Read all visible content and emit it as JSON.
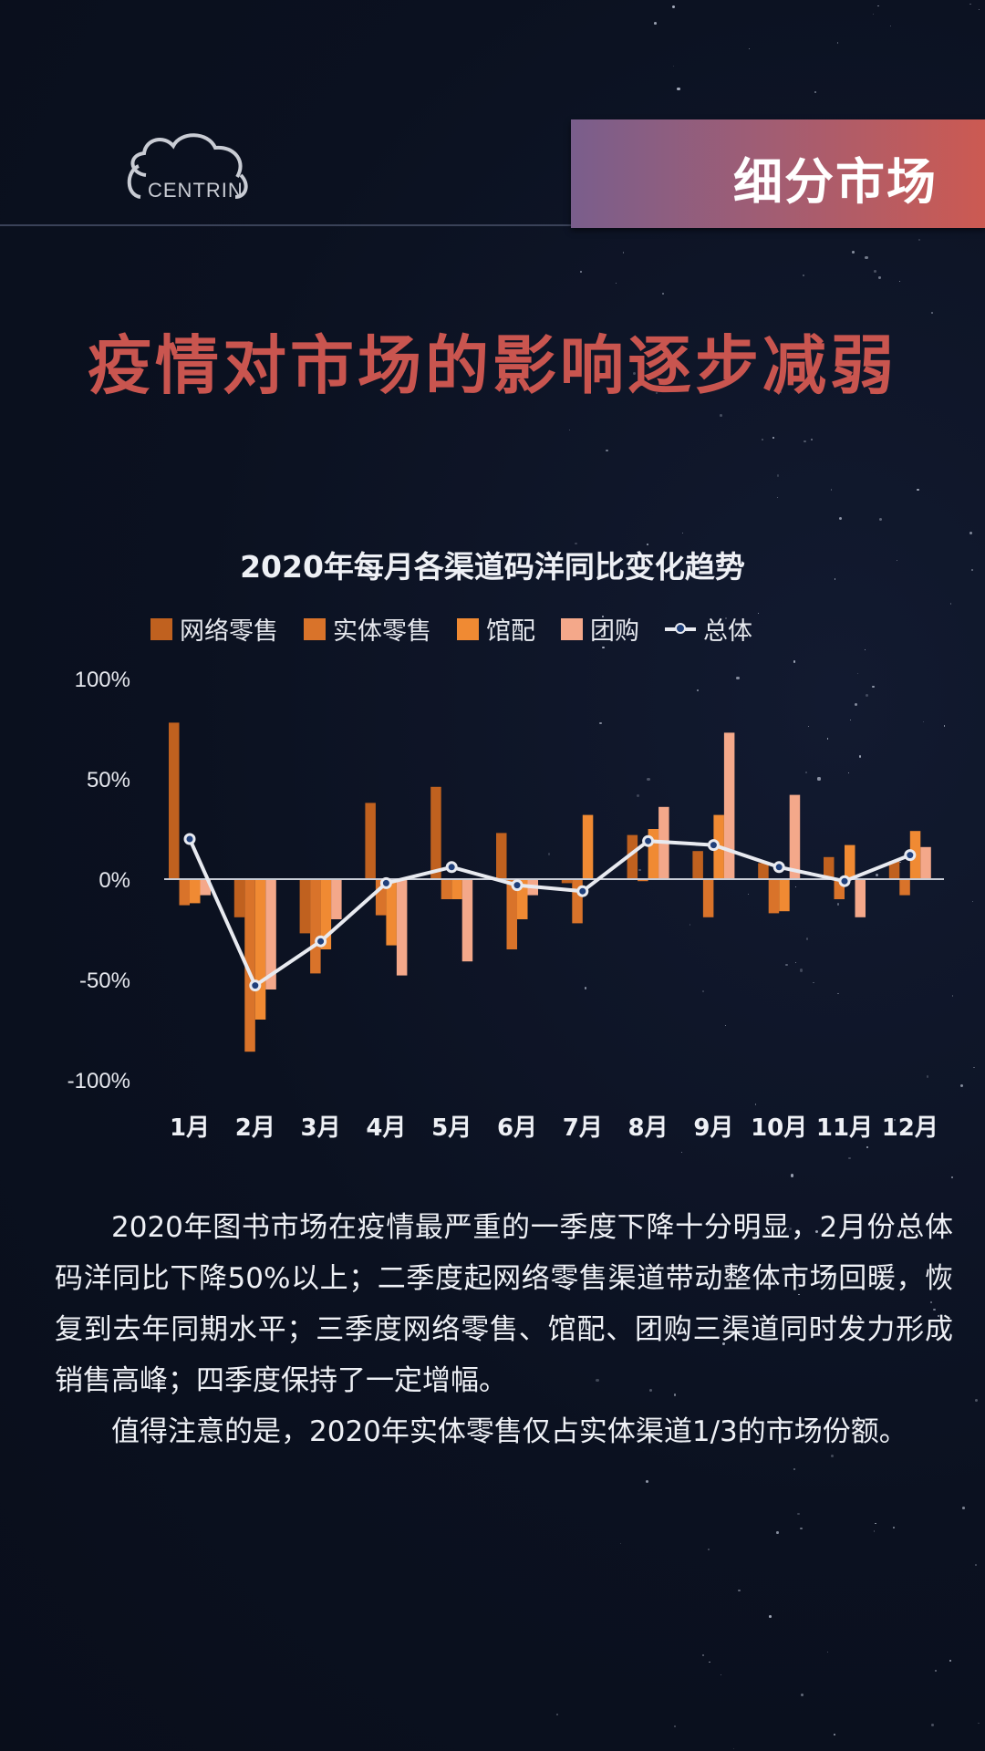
{
  "header": {
    "logo_text": "CENTRIN",
    "section_label": "细分市场"
  },
  "title": "疫情对市场的影响逐步减弱",
  "chart_data": {
    "type": "bar+line",
    "title": "2020年每月各渠道码洋同比变化趋势",
    "categories": [
      "1月",
      "2月",
      "3月",
      "4月",
      "5月",
      "6月",
      "7月",
      "8月",
      "9月",
      "10月",
      "11月",
      "12月"
    ],
    "yticks": [
      "100%",
      "50%",
      "0%",
      "-50%",
      "-100%"
    ],
    "ylim": [
      -100,
      100
    ],
    "unit": "%",
    "legend_position": "top",
    "grid": false,
    "series": [
      {
        "name": "网络零售",
        "type": "bar",
        "color": "#c0611f",
        "values": [
          78,
          -19,
          -27,
          38,
          46,
          23,
          -2,
          22,
          14,
          8,
          11,
          9
        ]
      },
      {
        "name": "实体零售",
        "type": "bar",
        "color": "#d9732a",
        "values": [
          -13,
          -86,
          -47,
          -18,
          -10,
          -35,
          -22,
          -1,
          -19,
          -17,
          -10,
          -8
        ]
      },
      {
        "name": "馆配",
        "type": "bar",
        "color": "#f08a33",
        "values": [
          -12,
          -70,
          -35,
          -33,
          -10,
          -20,
          32,
          25,
          32,
          -16,
          17,
          24
        ]
      },
      {
        "name": "团购",
        "type": "bar",
        "color": "#f4a88a",
        "values": [
          -8,
          -55,
          -20,
          -48,
          -41,
          -8,
          0,
          36,
          73,
          42,
          -19,
          16
        ]
      },
      {
        "name": "总体",
        "type": "line",
        "color": "#e8eaf0",
        "values": [
          20,
          -53,
          -31,
          -2,
          6,
          -3,
          -6,
          19,
          17,
          6,
          -1,
          12
        ]
      }
    ]
  },
  "paragraphs": [
    "2020年图书市场在疫情最严重的一季度下降十分明显，2月份总体码洋同比下降50%以上；二季度起网络零售渠道带动整体市场回暖，恢复到去年同期水平；三季度网络零售、馆配、团购三渠道同时发力形成销售高峰；四季度保持了一定增幅。",
    "值得注意的是，2020年实体零售仅占实体渠道1/3的市场份额。"
  ]
}
